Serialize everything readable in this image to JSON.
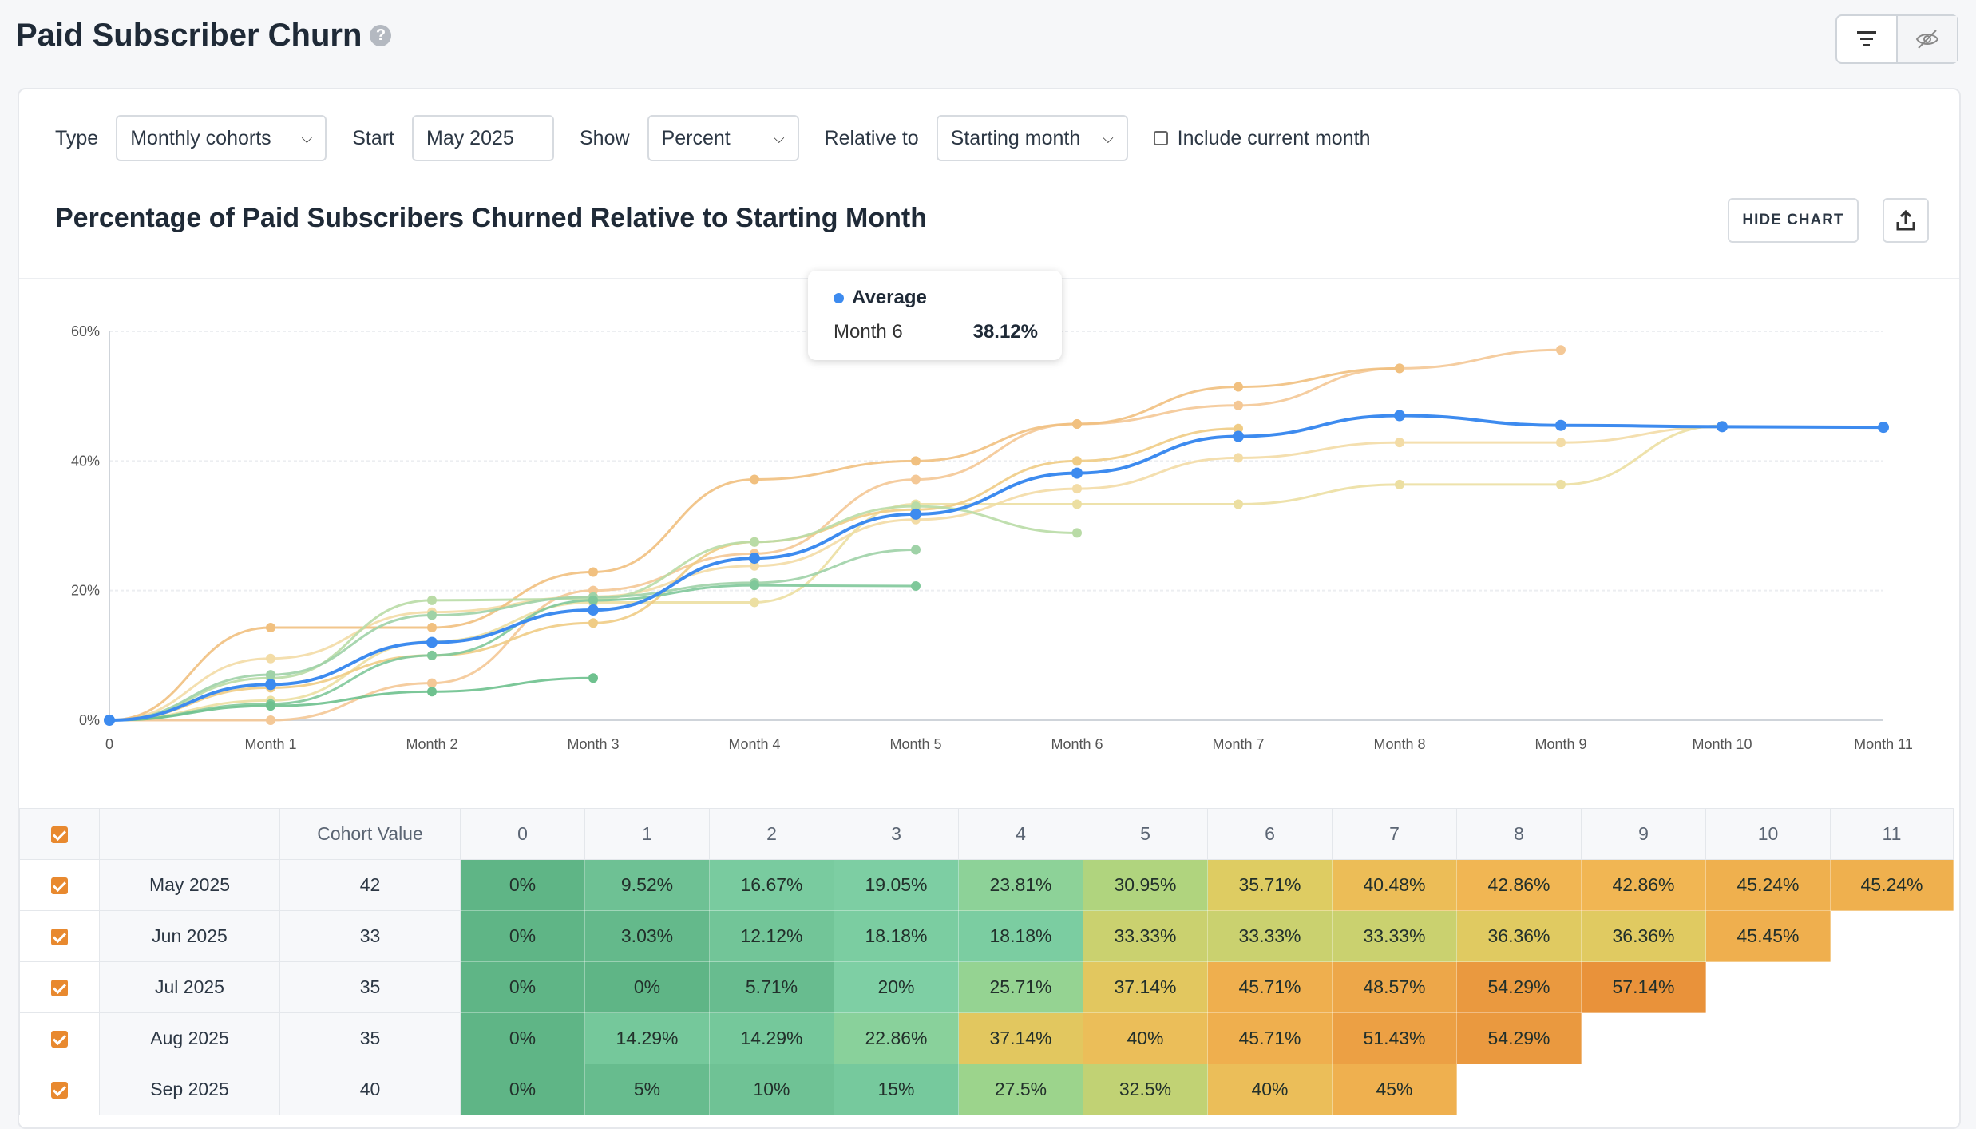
{
  "header": {
    "title": "Paid Subscriber Churn",
    "help_icon": "?"
  },
  "filters": {
    "type_label": "Type",
    "type_value": "Monthly cohorts",
    "start_label": "Start",
    "start_value": "May 2025",
    "show_label": "Show",
    "show_value": "Percent",
    "relative_label": "Relative to",
    "relative_value": "Starting month",
    "include_current_label": "Include current month"
  },
  "chart_section": {
    "title": "Percentage of Paid Subscribers Churned Relative to Starting Month",
    "hide_label": "HIDE CHART"
  },
  "tooltip": {
    "series": "Average",
    "month": "Month 6",
    "value": "38.12%"
  },
  "chart_data": {
    "type": "line",
    "x_labels": [
      "0",
      "Month 1",
      "Month 2",
      "Month 3",
      "Month 4",
      "Month 5",
      "Month 6",
      "Month 7",
      "Month 8",
      "Month 9",
      "Month 10",
      "Month 11"
    ],
    "y_ticks": [
      "0%",
      "20%",
      "40%",
      "60%"
    ],
    "ylim": [
      0,
      60
    ],
    "series": [
      {
        "name": "Average",
        "color": "#3d8bef",
        "values": [
          0,
          5.5,
          12,
          17,
          25,
          31.8,
          38.12,
          43.8,
          47,
          45.5,
          45.3,
          45.2
        ]
      },
      {
        "values": [
          0,
          9.52,
          16.67,
          19.05,
          23.81,
          30.95,
          35.71,
          40.48,
          42.86,
          42.86,
          45.24,
          45.24
        ],
        "color": "#f3dca6"
      },
      {
        "values": [
          0,
          3.03,
          12.12,
          18.18,
          18.18,
          33.33,
          33.33,
          33.33,
          36.36,
          36.36,
          45.45
        ],
        "color": "#ecdfa2"
      },
      {
        "values": [
          0,
          0,
          5.71,
          20,
          25.71,
          37.14,
          45.71,
          48.57,
          54.29,
          57.14
        ],
        "color": "#f4c896"
      },
      {
        "values": [
          0,
          14.29,
          14.29,
          22.86,
          37.14,
          40,
          45.71,
          51.43,
          54.29
        ],
        "color": "#f1c07f"
      },
      {
        "values": [
          0,
          5,
          10,
          15,
          27.5,
          32.5,
          40,
          45
        ],
        "color": "#f0cc85"
      },
      {
        "values": [
          0,
          6.5,
          18.5,
          18.7,
          27.5,
          33,
          28.9
        ],
        "color": "#b9dba6"
      },
      {
        "values": [
          0,
          7,
          16.2,
          19,
          21.2,
          26.3
        ],
        "color": "#9fd2a7"
      },
      {
        "values": [
          0,
          2.5,
          10,
          18.5,
          20.8,
          20.7
        ],
        "color": "#7fc89a"
      },
      {
        "values": [
          0,
          2.2,
          4.4,
          6.5
        ],
        "color": "#6ec18e"
      }
    ]
  },
  "table": {
    "header": [
      "Cohort Value",
      "0",
      "1",
      "2",
      "3",
      "4",
      "5",
      "6",
      "7",
      "8",
      "9",
      "10",
      "11"
    ],
    "rows": [
      {
        "cohort": "May 2025",
        "value": "42",
        "cells": [
          "0%",
          "9.52%",
          "16.67%",
          "19.05%",
          "23.81%",
          "30.95%",
          "35.71%",
          "40.48%",
          "42.86%",
          "42.86%",
          "45.24%",
          "45.24%"
        ]
      },
      {
        "cohort": "Jun 2025",
        "value": "33",
        "cells": [
          "0%",
          "3.03%",
          "12.12%",
          "18.18%",
          "18.18%",
          "33.33%",
          "33.33%",
          "33.33%",
          "36.36%",
          "36.36%",
          "45.45%"
        ]
      },
      {
        "cohort": "Jul 2025",
        "value": "35",
        "cells": [
          "0%",
          "0%",
          "5.71%",
          "20%",
          "25.71%",
          "37.14%",
          "45.71%",
          "48.57%",
          "54.29%",
          "57.14%"
        ]
      },
      {
        "cohort": "Aug 2025",
        "value": "35",
        "cells": [
          "0%",
          "14.29%",
          "14.29%",
          "22.86%",
          "37.14%",
          "40%",
          "45.71%",
          "51.43%",
          "54.29%"
        ]
      },
      {
        "cohort": "Sep 2025",
        "value": "40",
        "cells": [
          "0%",
          "5%",
          "10%",
          "15%",
          "27.5%",
          "32.5%",
          "40%",
          "45%"
        ]
      }
    ]
  },
  "colors": {
    "accent": "#3d8bef",
    "checkbox": "#e8892f"
  }
}
